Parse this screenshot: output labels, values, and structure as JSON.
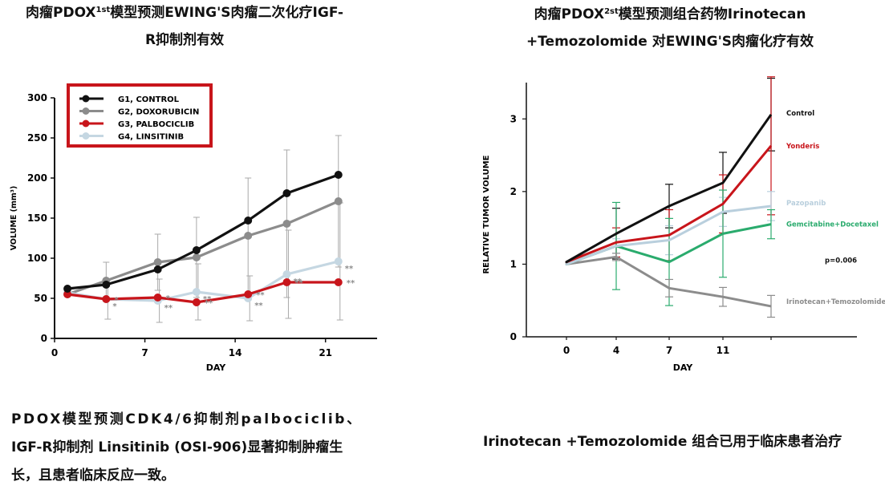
{
  "left_title": {
    "line1_a": "肉瘤PDOX",
    "line1_sup": "1st",
    "line1_b": "模型预测EWING'S肉瘤二次化疗IGF-",
    "line2": "R抑制剂有效"
  },
  "right_title": {
    "line1_a": "肉瘤PDOX",
    "line1_sup": "2st",
    "line1_b": "模型预测组合药物Irinotecan",
    "line2": "+Temozolomide 对EWING'S肉瘤化疗有效"
  },
  "left_caption": {
    "line1": "PDOX模型预测CDK4/6抑制剂palbociclib、",
    "line2": "IGF-R抑制剂 Linsitinib (OSI-906)显著抑制肿瘤生",
    "line3": "长，且患者临床反应一致。"
  },
  "right_caption": "Irinotecan +Temozolomide 组合已用于临床患者治疗",
  "chart_data": [
    {
      "type": "line",
      "xlabel": "DAY",
      "ylabel": "VOLUME (mm³)",
      "xlim": [
        0,
        25
      ],
      "ylim": [
        0,
        300
      ],
      "xticks": [
        0,
        7,
        14,
        21
      ],
      "yticks": [
        0,
        50,
        100,
        150,
        200,
        250,
        300
      ],
      "x": [
        1,
        4,
        8,
        11,
        15,
        18,
        22
      ],
      "legend_placement": "top-left",
      "series": [
        {
          "name": "G1, CONTROL",
          "color": "#111111",
          "values": [
            62,
            67,
            86,
            110,
            147,
            181,
            204
          ],
          "error": [
            0,
            0,
            0,
            0,
            0,
            0,
            0
          ]
        },
        {
          "name": "G2, DOXORUBICIN",
          "color": "#8c8c8c",
          "values": [
            55,
            72,
            95,
            101,
            128,
            143,
            171
          ],
          "error": [
            0,
            23,
            35,
            50,
            72,
            92,
            82
          ],
          "annotations": [
            "",
            "",
            "",
            "",
            "",
            "",
            ""
          ]
        },
        {
          "name": "G3, PALBOCICLIB",
          "color": "#c8151b",
          "values": [
            55,
            49,
            51,
            45,
            55,
            70,
            70
          ],
          "error": [
            0,
            0,
            0,
            0,
            0,
            0,
            0
          ],
          "annotations": [
            "",
            "*",
            "*",
            "**",
            "**",
            "**",
            "**"
          ]
        },
        {
          "name": "G4, LINSITINIB",
          "color": "#c5d7e2",
          "values": [
            57,
            49,
            47,
            58,
            50,
            80,
            96
          ],
          "error": [
            0,
            25,
            27,
            35,
            28,
            55,
            73
          ],
          "annotations": [
            "",
            "*",
            "**",
            "**",
            "**",
            "**",
            "**"
          ]
        }
      ]
    },
    {
      "type": "line",
      "xlabel": "DAY",
      "ylabel": "RELATIVE TUMOR VOLUME",
      "xticks": [
        0,
        4,
        7,
        11
      ],
      "yticks": [
        0,
        1,
        2,
        3
      ],
      "ylim": [
        0,
        3.5
      ],
      "x": [
        0,
        4,
        7,
        11,
        15
      ],
      "annotation": "p=0.006",
      "series": [
        {
          "name": "Control",
          "color": "#111111",
          "values": [
            1.03,
            1.42,
            1.8,
            2.12,
            3.06
          ],
          "error": [
            0,
            0.35,
            0.3,
            0.42,
            0.5
          ]
        },
        {
          "name": "Yonderis",
          "color": "#c8151b",
          "values": [
            1.03,
            1.3,
            1.4,
            1.83,
            2.63
          ],
          "error": [
            0,
            0.2,
            0.35,
            0.4,
            0.95
          ]
        },
        {
          "name": "Pazopanib",
          "color": "#b9cfdd",
          "values": [
            1.0,
            1.25,
            1.33,
            1.72,
            1.8
          ],
          "error": [
            0,
            0.1,
            0.2,
            0.2,
            0.2
          ]
        },
        {
          "name": "Gemcitabine+Docetaxel",
          "color": "#2aab6d",
          "values": [
            1.0,
            1.25,
            1.03,
            1.42,
            1.55
          ],
          "error": [
            0,
            0.6,
            0.6,
            0.6,
            0.2
          ]
        },
        {
          "name": "Irinotecan+Temozolomide",
          "color": "#8c8c8c",
          "values": [
            1.0,
            1.1,
            0.67,
            0.55,
            0.42
          ],
          "error": [
            0,
            0.05,
            0.12,
            0.13,
            0.15
          ]
        }
      ]
    }
  ]
}
